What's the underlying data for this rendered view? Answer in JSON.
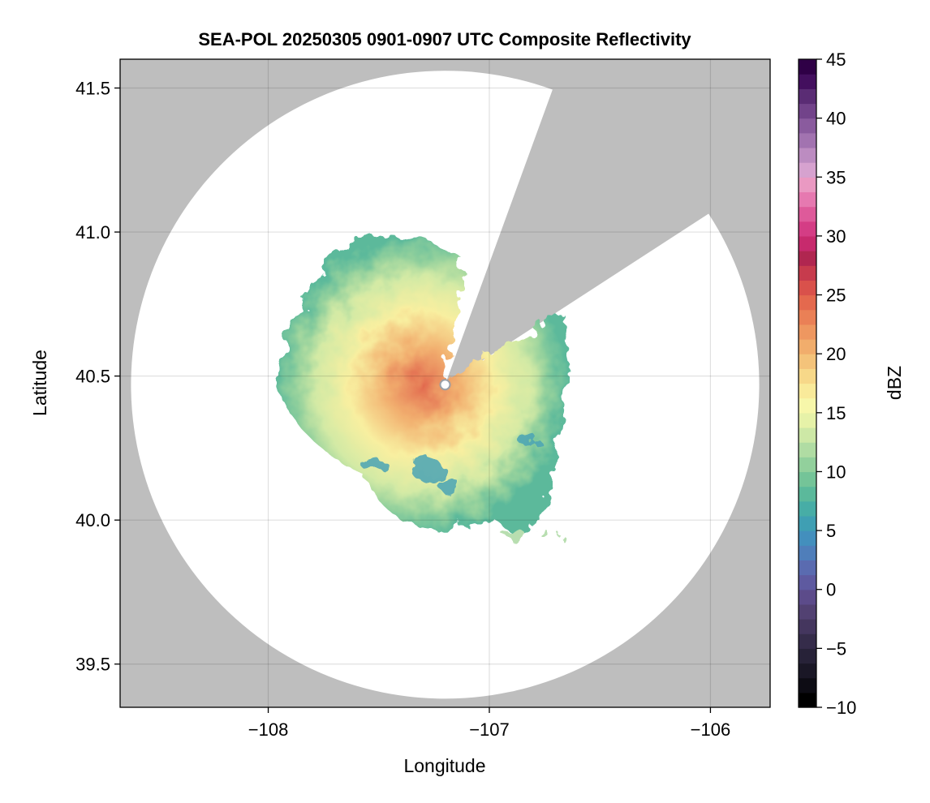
{
  "chart_data": {
    "type": "heatmap",
    "title": "SEA-POL 20250305 0901-0907 UTC Composite Reflectivity",
    "xlabel": "Longitude",
    "ylabel": "Latitude",
    "xlim": [
      -108.67,
      -105.73
    ],
    "ylim": [
      39.35,
      41.6
    ],
    "x_ticks": [
      -108,
      -107,
      -106
    ],
    "x_tick_labels": [
      "−108",
      "−107",
      "−106"
    ],
    "y_ticks": [
      39.5,
      40.0,
      40.5,
      41.0,
      41.5
    ],
    "y_tick_labels": [
      "39.5",
      "40.0",
      "40.5",
      "41.0",
      "41.5"
    ],
    "grid": true,
    "background_color": "#bebebe",
    "coverage_color": "#ffffff",
    "radar": {
      "center_lon": -107.2,
      "center_lat": 40.47,
      "range_deg_lat": 1.09,
      "blocked_sectors_azimuth_deg": [
        [
          20,
          57
        ]
      ]
    },
    "colorbar": {
      "label": "dBZ",
      "range": [
        -10,
        45
      ],
      "ticks": [
        -10,
        -5,
        0,
        5,
        10,
        15,
        20,
        25,
        30,
        35,
        40,
        45
      ],
      "tick_labels": [
        "−10",
        "−5",
        "0",
        "5",
        "10",
        "15",
        "20",
        "25",
        "30",
        "35",
        "40",
        "45"
      ],
      "colors": [
        "#000000",
        "#0d0c14",
        "#1a1726",
        "#272238",
        "#352c4a",
        "#44365e",
        "#524172",
        "#5c4b8a",
        "#5e5aa0",
        "#5a6bb0",
        "#4f7eba",
        "#438fbd",
        "#3f9fb3",
        "#47ada6",
        "#5bb99b",
        "#74c498",
        "#92d09c",
        "#b0dca3",
        "#cde8a6",
        "#e6f2a8",
        "#f7f7aa",
        "#f9ea9a",
        "#f7d889",
        "#f4c37a",
        "#f1ad6c",
        "#ee9760",
        "#ea8056",
        "#e4694e",
        "#d9514b",
        "#c73b4d",
        "#b02650",
        "#c72a6d",
        "#d43d85",
        "#de5a9a",
        "#e679b0",
        "#ea99c2",
        "#d6a2cf",
        "#bc8cc1",
        "#a273b0",
        "#8a5b9e",
        "#72438a",
        "#5a2c74",
        "#430f5e",
        "#2f0046"
      ]
    },
    "echo_region_approx": {
      "lon_range": [
        -108.0,
        -106.65
      ],
      "lat_range": [
        39.92,
        41.01
      ],
      "max_dbz_approx": 32
    }
  }
}
